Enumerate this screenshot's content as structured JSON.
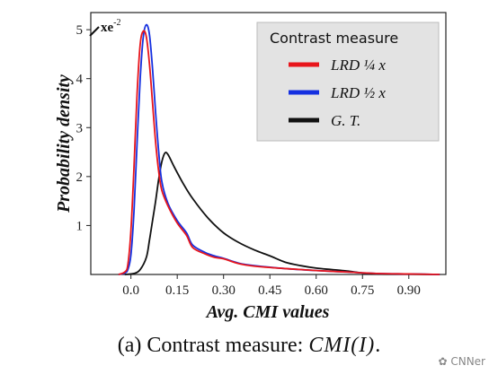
{
  "chart_data": {
    "type": "line",
    "xlabel": "Avg. CMI values",
    "ylabel": "Probability density",
    "y_scale_note": "xe",
    "y_scale_exp": "-2",
    "xlim": [
      -0.13,
      1.02
    ],
    "ylim": [
      0,
      5.35
    ],
    "xticks": [
      "0.0",
      "0.15",
      "0.30",
      "0.45",
      "0.60",
      "0.75",
      "0.90"
    ],
    "xtick_values": [
      0.0,
      0.15,
      0.3,
      0.45,
      0.6,
      0.75,
      0.9
    ],
    "yticks": [
      "1",
      "2",
      "3",
      "4",
      "5"
    ],
    "ytick_values": [
      1,
      2,
      3,
      4,
      5
    ],
    "legend": {
      "title": "Contrast measure",
      "position": "top-right",
      "entries": [
        "LRD ¼ x",
        "LRD ½ x",
        "G. T."
      ]
    },
    "series": [
      {
        "name": "LRD ¼ x",
        "color": "#e8151b",
        "points": [
          [
            -0.04,
            0
          ],
          [
            -0.02,
            0.05
          ],
          [
            -0.01,
            0.2
          ],
          [
            0.0,
            0.9
          ],
          [
            0.01,
            2.2
          ],
          [
            0.02,
            3.7
          ],
          [
            0.03,
            4.7
          ],
          [
            0.04,
            4.97
          ],
          [
            0.05,
            4.85
          ],
          [
            0.06,
            4.3
          ],
          [
            0.07,
            3.5
          ],
          [
            0.08,
            2.7
          ],
          [
            0.09,
            2.1
          ],
          [
            0.1,
            1.72
          ],
          [
            0.12,
            1.4
          ],
          [
            0.15,
            1.05
          ],
          [
            0.18,
            0.8
          ],
          [
            0.2,
            0.55
          ],
          [
            0.24,
            0.42
          ],
          [
            0.27,
            0.35
          ],
          [
            0.3,
            0.32
          ],
          [
            0.35,
            0.22
          ],
          [
            0.4,
            0.17
          ],
          [
            0.5,
            0.12
          ],
          [
            0.6,
            0.08
          ],
          [
            0.7,
            0.05
          ],
          [
            0.8,
            0.02
          ],
          [
            0.9,
            0.01
          ],
          [
            1.0,
            0
          ]
        ]
      },
      {
        "name": "LRD ½ x",
        "color": "#1530e0",
        "points": [
          [
            -0.04,
            0
          ],
          [
            -0.02,
            0.03
          ],
          [
            -0.01,
            0.1
          ],
          [
            0.0,
            0.4
          ],
          [
            0.01,
            1.3
          ],
          [
            0.02,
            2.7
          ],
          [
            0.03,
            4.0
          ],
          [
            0.04,
            4.85
          ],
          [
            0.05,
            5.1
          ],
          [
            0.06,
            4.9
          ],
          [
            0.07,
            4.2
          ],
          [
            0.08,
            3.3
          ],
          [
            0.09,
            2.5
          ],
          [
            0.1,
            1.9
          ],
          [
            0.12,
            1.45
          ],
          [
            0.15,
            1.1
          ],
          [
            0.18,
            0.85
          ],
          [
            0.2,
            0.6
          ],
          [
            0.24,
            0.45
          ],
          [
            0.27,
            0.38
          ],
          [
            0.3,
            0.33
          ],
          [
            0.35,
            0.23
          ],
          [
            0.4,
            0.18
          ],
          [
            0.5,
            0.12
          ],
          [
            0.6,
            0.08
          ],
          [
            0.7,
            0.05
          ],
          [
            0.8,
            0.02
          ],
          [
            0.9,
            0.01
          ],
          [
            1.0,
            0
          ]
        ]
      },
      {
        "name": "G. T.",
        "color": "#111111",
        "points": [
          [
            -0.02,
            0
          ],
          [
            0.01,
            0.02
          ],
          [
            0.03,
            0.1
          ],
          [
            0.05,
            0.35
          ],
          [
            0.06,
            0.7
          ],
          [
            0.07,
            1.1
          ],
          [
            0.08,
            1.5
          ],
          [
            0.09,
            1.95
          ],
          [
            0.1,
            2.3
          ],
          [
            0.11,
            2.48
          ],
          [
            0.12,
            2.45
          ],
          [
            0.14,
            2.2
          ],
          [
            0.17,
            1.85
          ],
          [
            0.2,
            1.55
          ],
          [
            0.25,
            1.15
          ],
          [
            0.3,
            0.85
          ],
          [
            0.35,
            0.65
          ],
          [
            0.4,
            0.5
          ],
          [
            0.45,
            0.38
          ],
          [
            0.5,
            0.25
          ],
          [
            0.55,
            0.18
          ],
          [
            0.6,
            0.13
          ],
          [
            0.65,
            0.1
          ],
          [
            0.7,
            0.07
          ],
          [
            0.75,
            0.03
          ],
          [
            0.8,
            0.01
          ],
          [
            0.9,
            0.005
          ],
          [
            1.0,
            0
          ]
        ]
      }
    ]
  },
  "caption": {
    "prefix": "(a) Contrast measure: ",
    "math": "CMI(I)",
    "suffix": "."
  },
  "watermark": "CNNer"
}
